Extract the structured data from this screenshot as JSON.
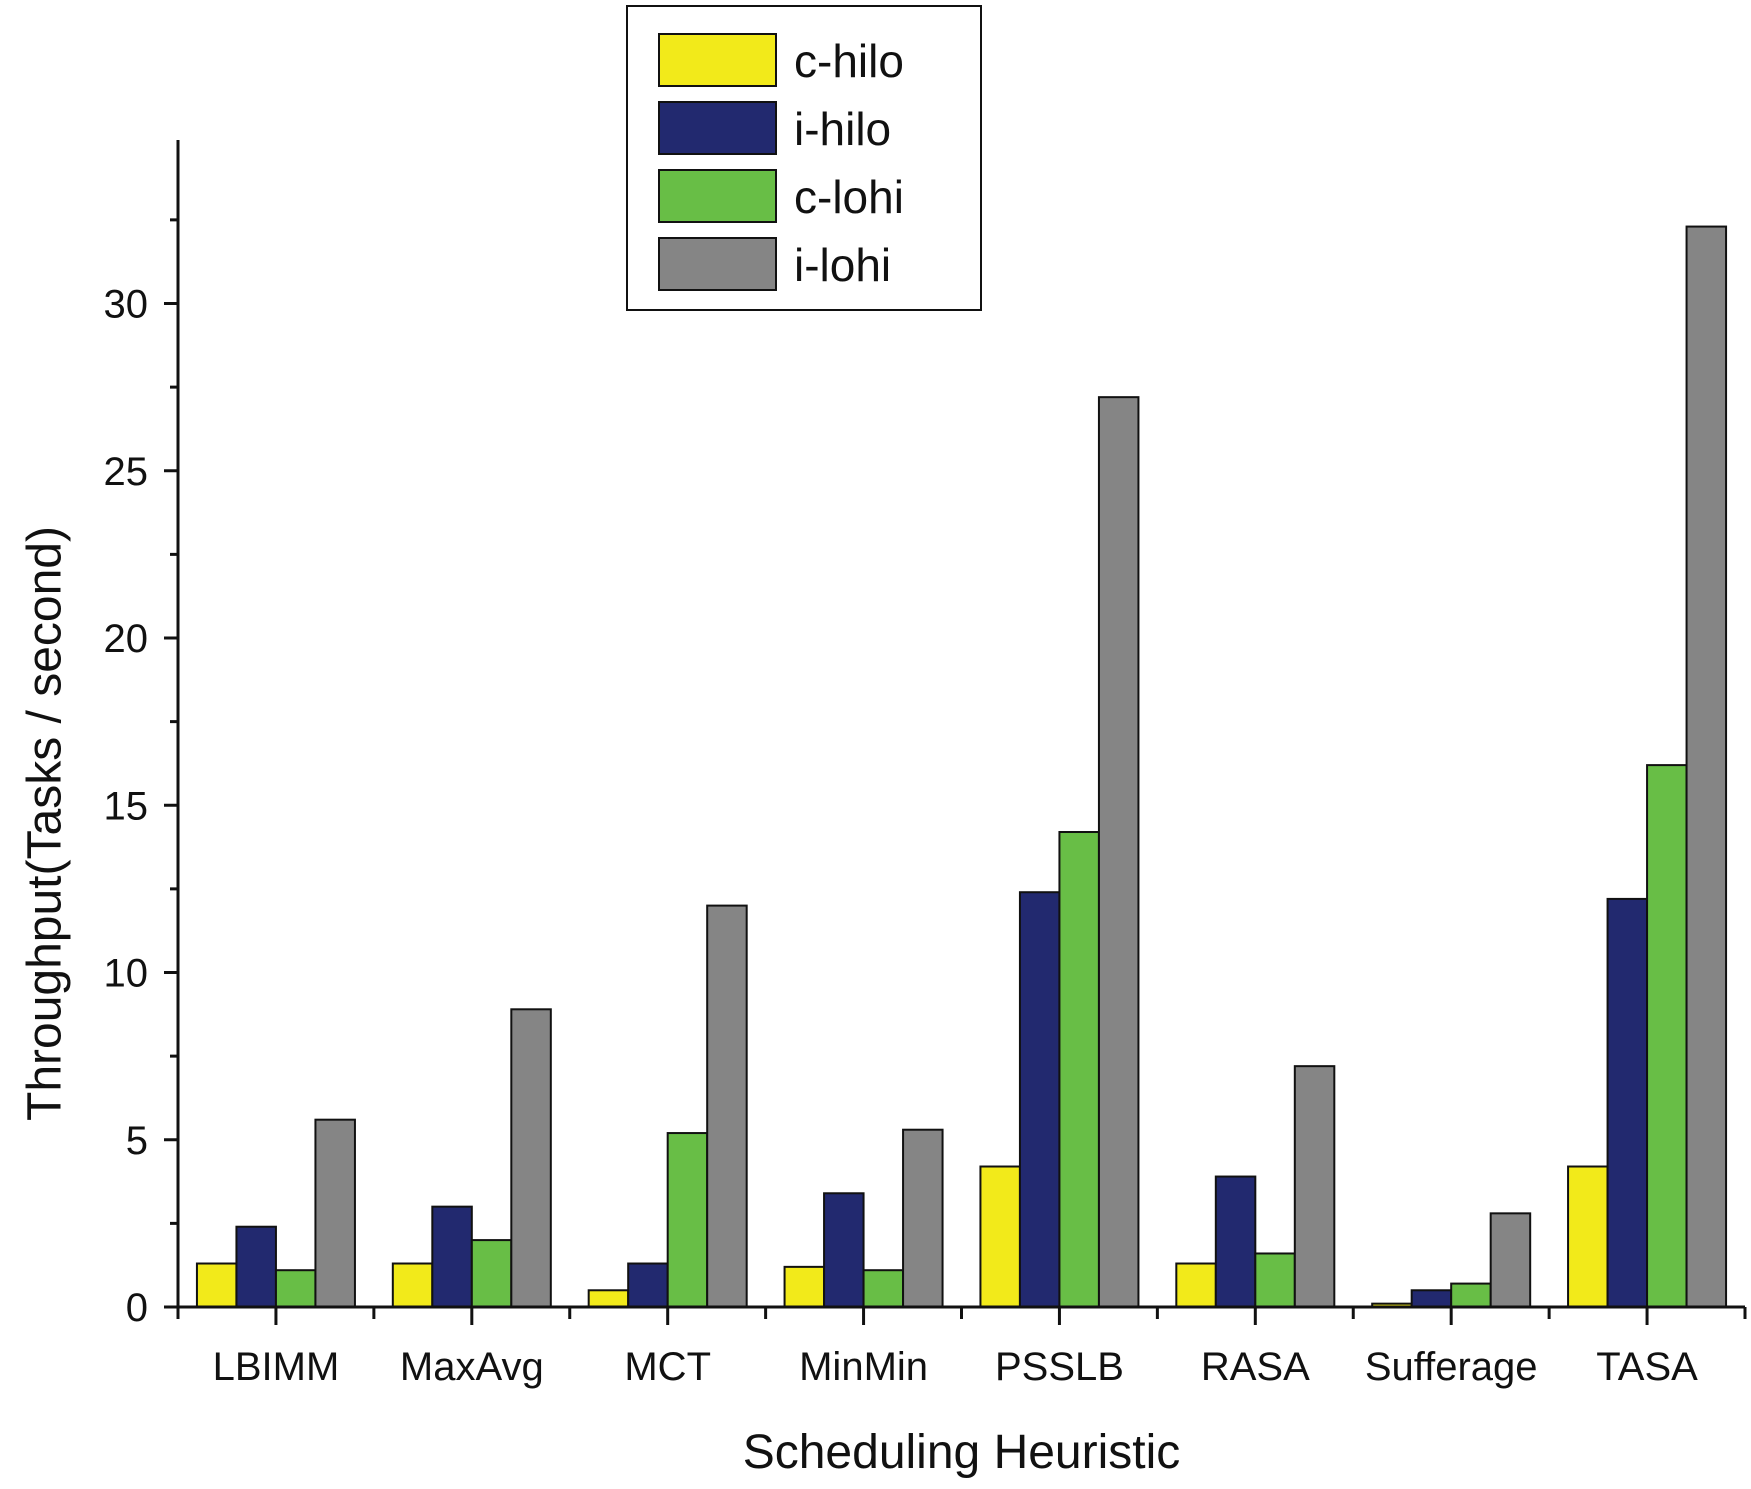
{
  "chart_data": {
    "type": "bar",
    "title": "",
    "xlabel": "Scheduling Heuristic",
    "ylabel": "Throughput(Tasks / second)",
    "ylim": [
      0,
      34
    ],
    "yticks": [
      0,
      5,
      10,
      15,
      20,
      25,
      30
    ],
    "grid": false,
    "legend_position": "top-center",
    "categories": [
      "LBIMM",
      "MaxAvg",
      "MCT",
      "MinMin",
      "PSSLB",
      "RASA",
      "Sufferage",
      "TASA"
    ],
    "series": [
      {
        "name": "c-hilo",
        "color": "#f2ea1a",
        "values": [
          1.3,
          1.3,
          0.5,
          1.2,
          4.2,
          1.3,
          0.1,
          4.2
        ]
      },
      {
        "name": "i-hilo",
        "color": "#22296f",
        "values": [
          2.4,
          3.0,
          1.3,
          3.4,
          12.4,
          3.9,
          0.5,
          12.2
        ]
      },
      {
        "name": "c-lohi",
        "color": "#68be46",
        "values": [
          1.1,
          2.0,
          5.2,
          1.1,
          14.2,
          1.6,
          0.7,
          16.2
        ]
      },
      {
        "name": "i-lohi",
        "color": "#858585",
        "values": [
          5.6,
          8.9,
          12.0,
          5.3,
          27.2,
          7.2,
          2.8,
          32.3
        ]
      }
    ]
  }
}
